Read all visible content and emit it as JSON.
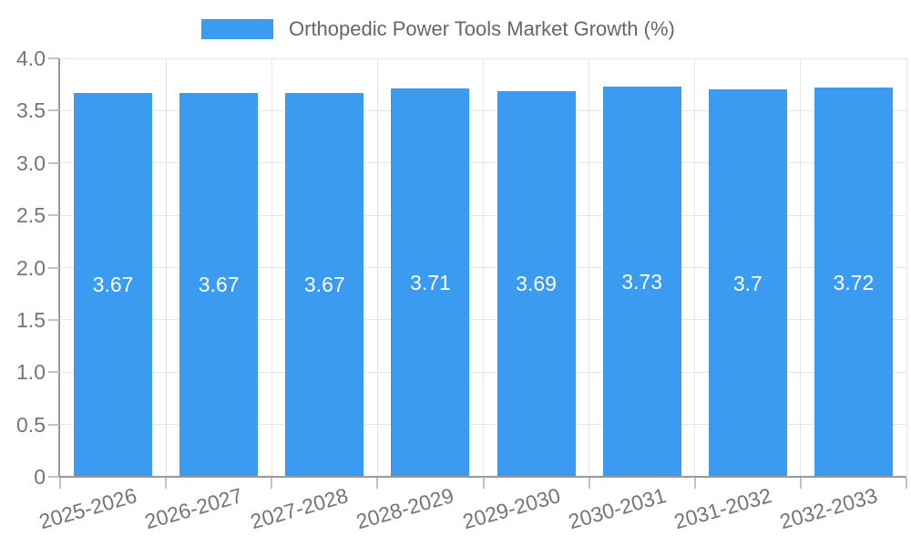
{
  "chart_data": {
    "type": "bar",
    "title": "Orthopedic Power Tools Market Growth (%)",
    "categories": [
      "2025-2026",
      "2026-2027",
      "2027-2028",
      "2028-2029",
      "2029-2030",
      "2030-2031",
      "2031-2032",
      "2032-2033"
    ],
    "values": [
      3.67,
      3.67,
      3.67,
      3.71,
      3.69,
      3.73,
      3.7,
      3.72
    ],
    "value_labels": [
      "3.67",
      "3.67",
      "3.67",
      "3.71",
      "3.69",
      "3.73",
      "3.7",
      "3.72"
    ],
    "xlabel": "",
    "ylabel": "",
    "ylim": [
      0,
      4.0
    ],
    "yticks": {
      "values": [
        0,
        0.5,
        1.0,
        1.5,
        2.0,
        2.5,
        3.0,
        3.5,
        4.0
      ],
      "labels": [
        "0",
        "0.5",
        "1.0",
        "1.5",
        "2.0",
        "2.5",
        "3.0",
        "3.5",
        "4.0"
      ]
    },
    "grid": true,
    "legend_position": "top-center",
    "colors": {
      "bar": "#3b9bf0",
      "bar_label": "#ffffff",
      "grid": "#e6e6e6",
      "axis": "#999999",
      "tick": "#c2c2c2",
      "tick_label": "#757575",
      "legend_text": "#666666",
      "background": "#ffffff"
    }
  }
}
